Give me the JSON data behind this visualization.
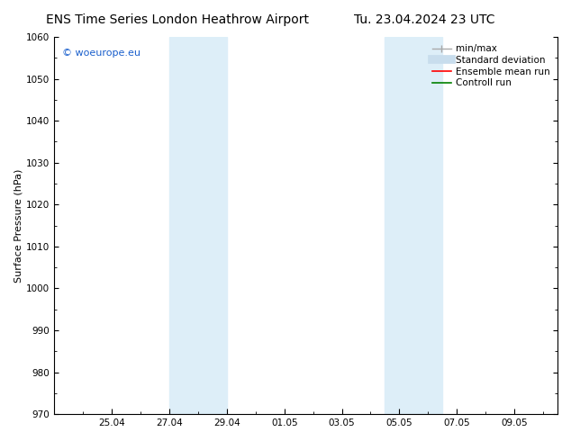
{
  "title_left": "ENS Time Series London Heathrow Airport",
  "title_right": "Tu. 23.04.2024 23 UTC",
  "ylabel": "Surface Pressure (hPa)",
  "ylim": [
    970,
    1060
  ],
  "yticks": [
    970,
    980,
    990,
    1000,
    1010,
    1020,
    1030,
    1040,
    1050,
    1060
  ],
  "xtick_labels": [
    "25.04",
    "27.04",
    "29.04",
    "01.05",
    "03.05",
    "05.05",
    "07.05",
    "09.05"
  ],
  "xtick_positions": [
    2,
    4,
    6,
    8,
    10,
    12,
    14,
    16
  ],
  "xlim": [
    0,
    17.5
  ],
  "shaded_bands": [
    {
      "x_start": 4,
      "x_end": 6,
      "color": "#ddeef8"
    },
    {
      "x_start": 11.5,
      "x_end": 13.5,
      "color": "#ddeef8"
    }
  ],
  "watermark_text": "© woeurope.eu",
  "watermark_color": "#1a5fcc",
  "background_color": "#ffffff",
  "legend_items": [
    {
      "label": "min/max",
      "color": "#aaaaaa"
    },
    {
      "label": "Standard deviation",
      "color": "#c8dded"
    },
    {
      "label": "Ensemble mean run",
      "color": "#ff0000"
    },
    {
      "label": "Controll run",
      "color": "#008000"
    }
  ],
  "title_fontsize": 10,
  "axis_label_fontsize": 8,
  "tick_fontsize": 7.5,
  "legend_fontsize": 7.5,
  "watermark_fontsize": 8
}
